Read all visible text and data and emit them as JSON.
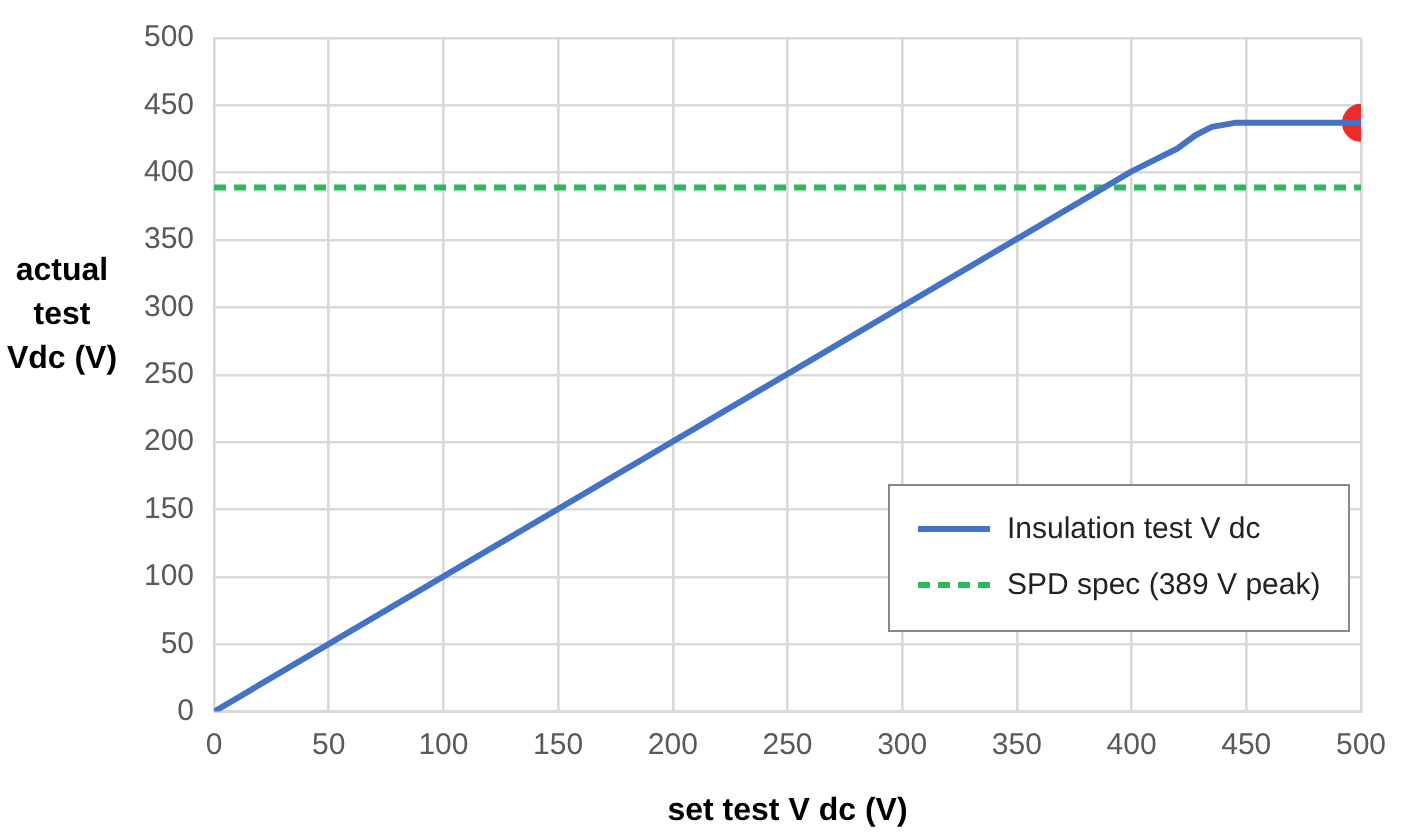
{
  "chart_data": {
    "type": "line",
    "xlabel": "set test V dc (V)",
    "ylabel": "actual test Vdc (V)",
    "xlim": [
      0,
      500
    ],
    "xticks": [
      0,
      50,
      100,
      150,
      200,
      250,
      300,
      350,
      400,
      450,
      500
    ],
    "ylim": [
      0,
      500
    ],
    "yticks": [
      0,
      50,
      100,
      150,
      200,
      250,
      300,
      350,
      400,
      450,
      500
    ],
    "grid": true,
    "legend": "bottom right",
    "series": [
      {
        "name": "Insulation test V dc",
        "color": "#4472c4",
        "line_style": "solid",
        "marker": "none",
        "x": [
          0,
          400,
          420,
          428,
          435,
          445,
          500
        ],
        "values": [
          0,
          401,
          418,
          428,
          434,
          437,
          437
        ]
      },
      {
        "name": "SPD spec (389 V peak)",
        "color": "#2eb85c",
        "line_style": "dashed",
        "marker": "none",
        "x": [
          0,
          500
        ],
        "values": [
          389,
          389
        ]
      },
      {
        "type": "scatter",
        "color": "#ee2b2b",
        "marker": "circle",
        "x": [
          500
        ],
        "values": [
          437
        ]
      }
    ]
  }
}
